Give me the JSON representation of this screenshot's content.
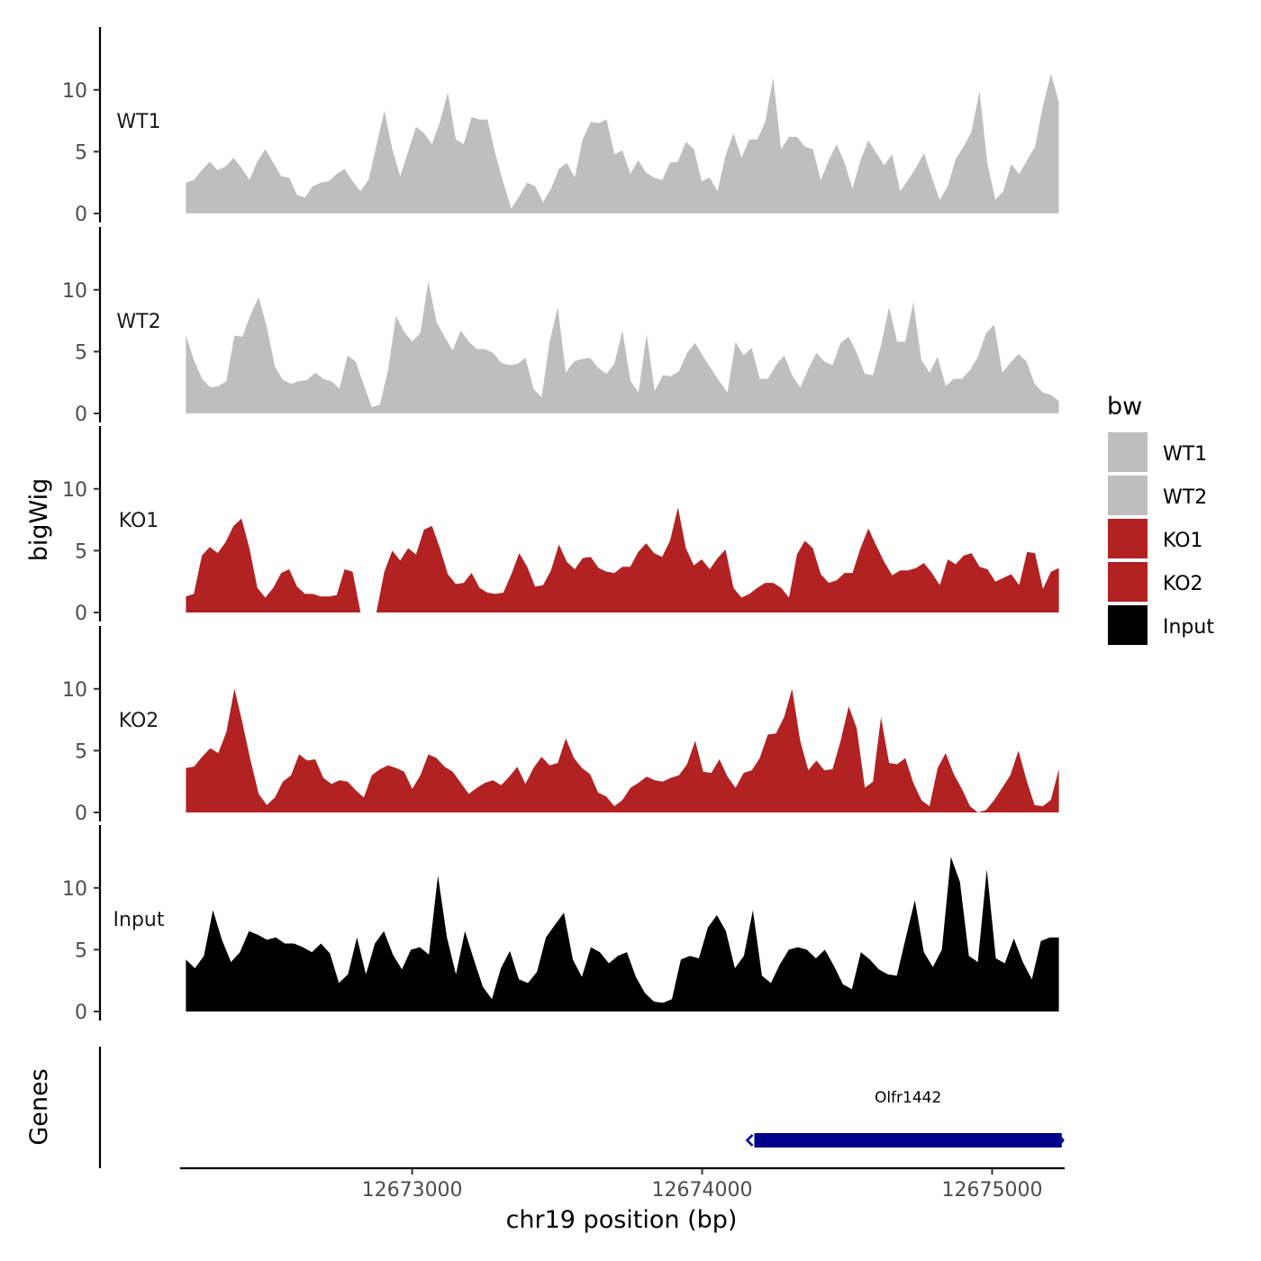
{
  "chart_data": {
    "type": "area",
    "y_axis_title": "bigWig",
    "genes_axis_title": "Genes",
    "x_axis_title": "chr19 position (bp)",
    "x_range": [
      12672200,
      12675250
    ],
    "y_range": [
      0,
      14.5
    ],
    "x_ticks": [
      12673000,
      12674000,
      12675000
    ],
    "y_ticks": [
      0,
      5,
      10
    ],
    "legend": {
      "title": "bw",
      "position": "right",
      "entries": [
        {
          "label": "WT1",
          "color": "#bebebe"
        },
        {
          "label": "WT2",
          "color": "#bebebe"
        },
        {
          "label": "KO1",
          "color": "#b22222"
        },
        {
          "label": "KO2",
          "color": "#b22222"
        },
        {
          "label": "Input",
          "color": "#000000"
        }
      ]
    },
    "series": [
      {
        "name": "WT1",
        "color": "#bebebe",
        "x_start": 12672220,
        "x_end": 12675230,
        "values": [
          2.5,
          2.7,
          3.5,
          4.2,
          3.5,
          3.8,
          4.5,
          3.7,
          2.7,
          4.2,
          5.2,
          4.1,
          3.0,
          2.9,
          1.5,
          1.3,
          2.2,
          2.5,
          2.6,
          3.2,
          3.6,
          2.6,
          1.8,
          2.7,
          5.5,
          8.3,
          5.2,
          3.0,
          5.0,
          7.0,
          6.5,
          5.6,
          7.4,
          9.8,
          6.0,
          5.6,
          7.8,
          7.6,
          7.6,
          4.8,
          2.5,
          0.4,
          1.4,
          2.5,
          2.2,
          0.9,
          2.0,
          3.6,
          4.1,
          2.9,
          6.0,
          7.4,
          7.3,
          7.6,
          4.8,
          5.1,
          3.2,
          4.3,
          3.3,
          2.9,
          2.7,
          4.1,
          4.2,
          5.8,
          5.2,
          2.6,
          2.9,
          1.8,
          4.7,
          6.5,
          4.5,
          6.0,
          6.0,
          7.4,
          11.0,
          5.2,
          6.2,
          6.2,
          5.4,
          5.2,
          2.7,
          4.3,
          5.6,
          4.1,
          2.0,
          4.3,
          5.9,
          4.9,
          3.9,
          4.8,
          1.8,
          2.7,
          3.7,
          4.9,
          2.9,
          1.1,
          2.2,
          4.4,
          5.4,
          6.6,
          9.9,
          4.0,
          1.1,
          1.8,
          4.0,
          3.2,
          4.3,
          5.4,
          8.7,
          11.3,
          9.0
        ]
      },
      {
        "name": "WT2",
        "color": "#bebebe",
        "x_start": 12672220,
        "x_end": 12675230,
        "values": [
          6.3,
          4.3,
          2.8,
          2.1,
          2.2,
          2.6,
          6.3,
          6.2,
          8.0,
          9.4,
          7.0,
          3.8,
          2.7,
          2.4,
          2.6,
          2.7,
          3.3,
          2.8,
          2.6,
          2.0,
          4.7,
          4.2,
          2.3,
          0.5,
          0.7,
          3.5,
          7.9,
          6.6,
          5.8,
          6.5,
          10.7,
          7.4,
          6.2,
          5.1,
          6.7,
          5.8,
          5.2,
          5.2,
          4.9,
          4.1,
          3.9,
          4.0,
          4.5,
          2.0,
          1.3,
          5.8,
          8.6,
          3.3,
          4.2,
          4.4,
          4.5,
          3.7,
          3.2,
          4.0,
          6.7,
          2.6,
          1.7,
          6.4,
          1.8,
          3.1,
          3.0,
          3.4,
          4.9,
          5.7,
          4.6,
          3.6,
          2.6,
          1.7,
          5.8,
          4.7,
          5.3,
          2.8,
          2.8,
          3.9,
          4.7,
          3.1,
          2.1,
          3.6,
          4.9,
          4.2,
          3.9,
          5.7,
          6.2,
          4.9,
          3.2,
          3.1,
          5.5,
          8.6,
          5.8,
          5.8,
          9.0,
          4.3,
          3.3,
          4.6,
          2.2,
          2.8,
          2.8,
          3.5,
          4.6,
          6.5,
          7.2,
          3.3,
          4.1,
          4.8,
          4.2,
          2.4,
          1.7,
          1.5,
          1.0
        ]
      },
      {
        "name": "KO1",
        "color": "#b22222",
        "x_start": 12672220,
        "x_end": 12675230,
        "values": [
          1.3,
          1.5,
          4.6,
          5.3,
          4.8,
          5.7,
          7.0,
          7.6,
          5.2,
          2.0,
          1.2,
          2.0,
          3.2,
          3.5,
          2.1,
          1.5,
          1.5,
          1.3,
          1.3,
          1.4,
          3.5,
          3.3,
          0.0,
          0.0,
          0.0,
          3.3,
          5.0,
          4.2,
          5.2,
          4.7,
          6.7,
          7.0,
          5.2,
          3.1,
          2.3,
          2.4,
          3.2,
          2.0,
          1.6,
          1.5,
          1.6,
          3.1,
          4.8,
          3.7,
          2.1,
          2.2,
          3.4,
          5.5,
          4.1,
          3.5,
          4.4,
          4.5,
          3.6,
          3.3,
          3.2,
          3.7,
          3.7,
          4.9,
          5.6,
          4.8,
          4.5,
          5.8,
          8.5,
          5.2,
          3.8,
          4.3,
          3.5,
          4.4,
          5.1,
          2.0,
          1.2,
          1.5,
          2.0,
          2.4,
          2.4,
          2.0,
          1.2,
          4.7,
          5.8,
          5.2,
          3.1,
          2.4,
          2.6,
          3.2,
          3.2,
          5.2,
          6.8,
          5.4,
          4.1,
          3.0,
          3.4,
          3.4,
          3.6,
          4.0,
          3.2,
          2.2,
          4.3,
          3.9,
          4.6,
          4.8,
          3.7,
          3.5,
          2.5,
          2.8,
          3.1,
          2.2,
          4.9,
          4.8,
          1.9,
          3.3,
          3.6
        ]
      },
      {
        "name": "KO2",
        "color": "#b22222",
        "x_start": 12672220,
        "x_end": 12675230,
        "values": [
          3.6,
          3.7,
          4.5,
          5.2,
          4.8,
          6.5,
          10.0,
          7.2,
          4.2,
          1.5,
          0.6,
          1.2,
          2.5,
          3.0,
          4.7,
          4.2,
          4.3,
          2.8,
          2.3,
          2.6,
          2.5,
          1.8,
          1.2,
          3.0,
          3.5,
          3.8,
          3.6,
          3.3,
          1.9,
          3.0,
          4.7,
          4.4,
          3.7,
          3.3,
          2.4,
          1.5,
          2.0,
          2.4,
          2.6,
          2.2,
          2.9,
          3.7,
          2.3,
          3.6,
          4.5,
          3.8,
          4.0,
          6.0,
          4.4,
          3.6,
          3.1,
          1.6,
          1.3,
          0.5,
          1.0,
          2.0,
          2.4,
          2.9,
          2.6,
          2.5,
          2.8,
          3.0,
          3.9,
          5.8,
          3.3,
          3.2,
          4.3,
          2.9,
          2.0,
          3.2,
          3.4,
          4.4,
          6.3,
          6.4,
          7.7,
          10.0,
          5.8,
          3.4,
          4.2,
          3.4,
          3.5,
          5.8,
          8.6,
          6.8,
          2.0,
          2.5,
          7.7,
          4.0,
          3.9,
          4.4,
          2.4,
          1.0,
          0.5,
          3.6,
          4.8,
          3.1,
          1.9,
          0.5,
          0.0,
          0.2,
          1.0,
          2.0,
          3.0,
          5.0,
          2.6,
          0.6,
          0.5,
          1.0,
          3.5
        ]
      },
      {
        "name": "Input",
        "color": "#000000",
        "x_start": 12672220,
        "x_end": 12675230,
        "values": [
          4.2,
          3.5,
          4.5,
          8.2,
          5.8,
          4.0,
          4.8,
          6.5,
          6.2,
          5.8,
          6.0,
          5.5,
          5.5,
          5.2,
          4.8,
          5.5,
          4.7,
          2.3,
          3.0,
          6.0,
          3.0,
          5.5,
          6.5,
          4.6,
          3.4,
          5.0,
          5.2,
          4.6,
          11.0,
          6.0,
          3.0,
          6.5,
          4.2,
          2.0,
          1.0,
          3.5,
          4.9,
          2.6,
          2.3,
          3.2,
          6.0,
          7.0,
          8.0,
          4.2,
          2.8,
          5.2,
          4.8,
          3.9,
          4.5,
          4.8,
          2.8,
          1.5,
          0.8,
          0.7,
          1.0,
          4.2,
          4.5,
          4.3,
          6.8,
          7.8,
          6.5,
          3.5,
          4.5,
          8.2,
          2.9,
          2.3,
          3.8,
          5.0,
          5.2,
          5.0,
          4.3,
          5.0,
          3.7,
          2.2,
          1.8,
          4.8,
          4.2,
          3.4,
          3.0,
          2.9,
          6.0,
          9.0,
          4.8,
          3.6,
          5.0,
          12.5,
          10.5,
          4.5,
          4.0,
          11.5,
          4.3,
          3.9,
          5.9,
          4.0,
          2.6,
          5.7,
          6.0,
          6.0
        ]
      }
    ],
    "genes": [
      {
        "name": "Olfr1442",
        "start": 12674180,
        "end": 12675240,
        "strand": "-",
        "color": "#00008b"
      }
    ]
  }
}
